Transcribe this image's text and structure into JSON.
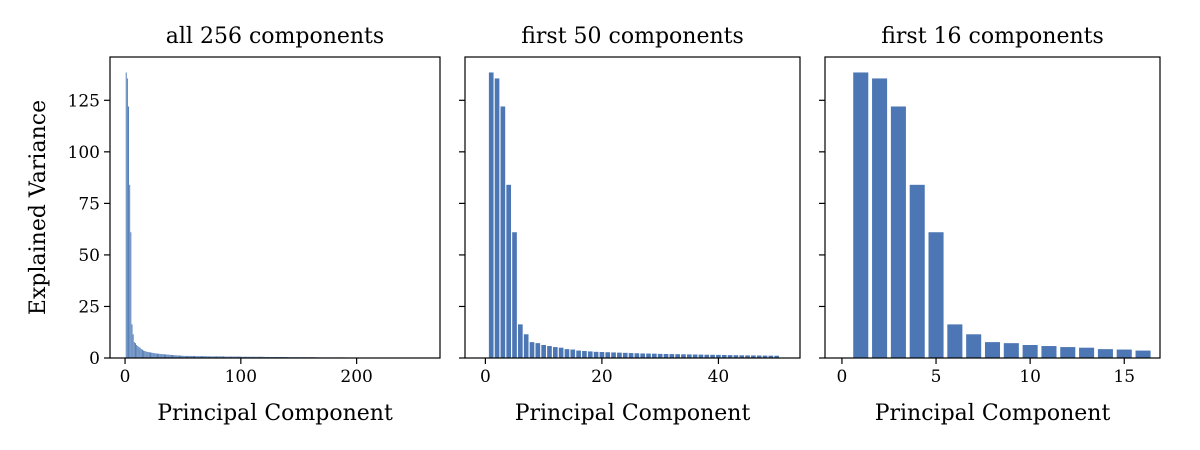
{
  "chart_data": [
    {
      "type": "bar",
      "title": "all 256 components",
      "xlabel": "Principal Component",
      "ylabel": "Explained Variance",
      "color": "#4c77b4",
      "xlim": [
        -13,
        272
      ],
      "xticks": [
        0,
        100,
        200
      ],
      "ylim": [
        0,
        146
      ],
      "yticks": [
        0,
        25,
        50,
        75,
        100,
        125
      ],
      "x": [
        1,
        2,
        3,
        4,
        5,
        6,
        7,
        8,
        9,
        10,
        11,
        12,
        13,
        14,
        15,
        16,
        17,
        18,
        19,
        20,
        21,
        22,
        23,
        24,
        25,
        26,
        27,
        28,
        29,
        30,
        31,
        32,
        33,
        34,
        35,
        36,
        37,
        38,
        39,
        40,
        41,
        42,
        43,
        44,
        45,
        46,
        47,
        48,
        49,
        50,
        51,
        52,
        53,
        54,
        55,
        56,
        57,
        58,
        59,
        60,
        61,
        62,
        63,
        64,
        65,
        66,
        67,
        68,
        69,
        70,
        71,
        72,
        73,
        74,
        75,
        76,
        77,
        78,
        79,
        80,
        81,
        82,
        83,
        84,
        85,
        86,
        87,
        88,
        89,
        90,
        91,
        92,
        93,
        94,
        95,
        96,
        97,
        98,
        99,
        100,
        101,
        102,
        103,
        104,
        105,
        106,
        107,
        108,
        109,
        110,
        111,
        112,
        113,
        114,
        115,
        116,
        117,
        118,
        119,
        120,
        121,
        122,
        123,
        124,
        125,
        126,
        127,
        128,
        129,
        130,
        131,
        132,
        133,
        134,
        135,
        136,
        137,
        138,
        139,
        140,
        141,
        142,
        143,
        144,
        145,
        146,
        147,
        148,
        149,
        150,
        151,
        152,
        153,
        154,
        155,
        156,
        157,
        158,
        159,
        160,
        161,
        162,
        163,
        164,
        165,
        166,
        167,
        168,
        169,
        170,
        171,
        172,
        173,
        174,
        175,
        176,
        177,
        178,
        179,
        180,
        181,
        182,
        183,
        184,
        185,
        186,
        187,
        188,
        189,
        190,
        191,
        192,
        193,
        194,
        195,
        196,
        197,
        198,
        199,
        200,
        201,
        202,
        203,
        204,
        205,
        206,
        207,
        208,
        209,
        210,
        211,
        212,
        213,
        214,
        215,
        216,
        217,
        218,
        219,
        220,
        221,
        222,
        223,
        224,
        225,
        226,
        227,
        228,
        229,
        230,
        231,
        232,
        233,
        234,
        235,
        236,
        237,
        238,
        239,
        240,
        241,
        242,
        243,
        244,
        245,
        246,
        247,
        248,
        249,
        250,
        251,
        252,
        253,
        254,
        255,
        256
      ],
      "values": [
        138.5,
        135.6,
        122,
        84,
        61,
        16.3,
        11.5,
        7.7,
        7.2,
        6.3,
        5.8,
        5.3,
        5,
        4.3,
        4.1,
        3.6,
        3.4,
        3.2,
        3,
        2.9,
        2.8,
        2.7,
        2.6,
        2.5,
        2.4,
        2.3,
        2.2,
        2.15,
        2.1,
        2,
        1.95,
        1.9,
        1.85,
        1.8,
        1.75,
        1.7,
        1.65,
        1.6,
        1.55,
        1.5,
        1.45,
        1.4,
        1.35,
        1.3,
        1.27,
        1.24,
        1.2,
        1.17,
        1.14,
        1.1,
        1,
        1,
        1,
        1,
        1,
        1,
        1,
        1,
        1,
        1,
        0.9,
        0.9,
        0.9,
        0.9,
        0.9,
        0.9,
        0.9,
        0.9,
        0.9,
        0.9,
        0.8,
        0.8,
        0.8,
        0.8,
        0.8,
        0.8,
        0.8,
        0.8,
        0.8,
        0.8,
        0.8,
        0.8,
        0.8,
        0.8,
        0.8,
        0.7,
        0.7,
        0.7,
        0.7,
        0.7,
        0.7,
        0.7,
        0.7,
        0.7,
        0.7,
        0.7,
        0.7,
        0.7,
        0.7,
        0.7,
        0.6,
        0.6,
        0.6,
        0.6,
        0.6,
        0.6,
        0.6,
        0.6,
        0.6,
        0.6,
        0.6,
        0.6,
        0.6,
        0.6,
        0.6,
        0.6,
        0.6,
        0.6,
        0.6,
        0.6,
        0.5,
        0.5,
        0.5,
        0.5,
        0.5,
        0.5,
        0.5,
        0.5,
        0.5,
        0.5,
        0.5,
        0.5,
        0.5,
        0.5,
        0.5,
        0.5,
        0.5,
        0.5,
        0.5,
        0.5,
        0.4,
        0.4,
        0.4,
        0.4,
        0.4,
        0.4,
        0.4,
        0.4,
        0.4,
        0.4,
        0.4,
        0.4,
        0.4,
        0.4,
        0.4,
        0.4,
        0.4,
        0.4,
        0.4,
        0.4,
        0.4,
        0.4,
        0.4,
        0.4,
        0.4,
        0.3,
        0.3,
        0.3,
        0.3,
        0.3,
        0.3,
        0.3,
        0.3,
        0.3,
        0.3,
        0.3,
        0.3,
        0.3,
        0.3,
        0.3,
        0.3,
        0.3,
        0.3,
        0.3,
        0.3,
        0.3,
        0.3,
        0.3,
        0.3,
        0.3,
        0.2,
        0.2,
        0.2,
        0.2,
        0.2,
        0.2,
        0.2,
        0.2,
        0.2,
        0.2,
        0.2,
        0.2,
        0.2,
        0.2,
        0.2,
        0.2,
        0.2,
        0.2,
        0.2,
        0.2,
        0.2,
        0.2,
        0.2,
        0.2,
        0.2,
        0.2,
        0.2,
        0.2,
        0.2,
        0.2,
        0.1,
        0.1,
        0.1,
        0.1,
        0.1,
        0.1,
        0.1,
        0.1,
        0.1,
        0.1,
        0.1,
        0.1,
        0.1,
        0.1,
        0.1,
        0.1,
        0.1,
        0.1,
        0.1,
        0.1,
        0.1,
        0.1,
        0.1,
        0.1,
        0.1,
        0.1,
        0.1,
        0.1,
        0.1,
        0.1,
        0.1,
        0.1,
        0.1,
        0.1,
        0.1,
        0.1
      ]
    },
    {
      "type": "bar",
      "title": "first 50 components",
      "xlabel": "Principal Component",
      "color": "#4c77b4",
      "xlim": [
        -3.5,
        54
      ],
      "xticks": [
        0,
        20,
        40
      ],
      "ylim": [
        0,
        146
      ],
      "yticks": [
        0,
        25,
        50,
        75,
        100,
        125
      ],
      "x": [
        1,
        2,
        3,
        4,
        5,
        6,
        7,
        8,
        9,
        10,
        11,
        12,
        13,
        14,
        15,
        16,
        17,
        18,
        19,
        20,
        21,
        22,
        23,
        24,
        25,
        26,
        27,
        28,
        29,
        30,
        31,
        32,
        33,
        34,
        35,
        36,
        37,
        38,
        39,
        40,
        41,
        42,
        43,
        44,
        45,
        46,
        47,
        48,
        49,
        50
      ],
      "values": [
        138.5,
        135.6,
        122,
        84,
        61,
        16.3,
        11.5,
        7.7,
        7.2,
        6.3,
        5.8,
        5.3,
        5,
        4.3,
        4.1,
        3.6,
        3.4,
        3.2,
        3,
        2.9,
        2.8,
        2.7,
        2.6,
        2.5,
        2.4,
        2.3,
        2.2,
        2.15,
        2.1,
        2,
        1.95,
        1.9,
        1.85,
        1.8,
        1.75,
        1.7,
        1.65,
        1.6,
        1.55,
        1.5,
        1.45,
        1.4,
        1.35,
        1.3,
        1.27,
        1.24,
        1.2,
        1.17,
        1.14,
        1.1
      ]
    },
    {
      "type": "bar",
      "title": "first 16 components",
      "xlabel": "Principal Component",
      "color": "#4c77b4",
      "xlim": [
        -0.9,
        16.9
      ],
      "xticks": [
        0,
        5,
        10,
        15
      ],
      "ylim": [
        0,
        146
      ],
      "yticks": [
        0,
        25,
        50,
        75,
        100,
        125
      ],
      "x": [
        1,
        2,
        3,
        4,
        5,
        6,
        7,
        8,
        9,
        10,
        11,
        12,
        13,
        14,
        15,
        16
      ],
      "values": [
        138.5,
        135.6,
        122,
        84,
        61,
        16.3,
        11.5,
        7.7,
        7.2,
        6.3,
        5.8,
        5.3,
        5,
        4.3,
        4.1,
        3.6
      ]
    }
  ]
}
